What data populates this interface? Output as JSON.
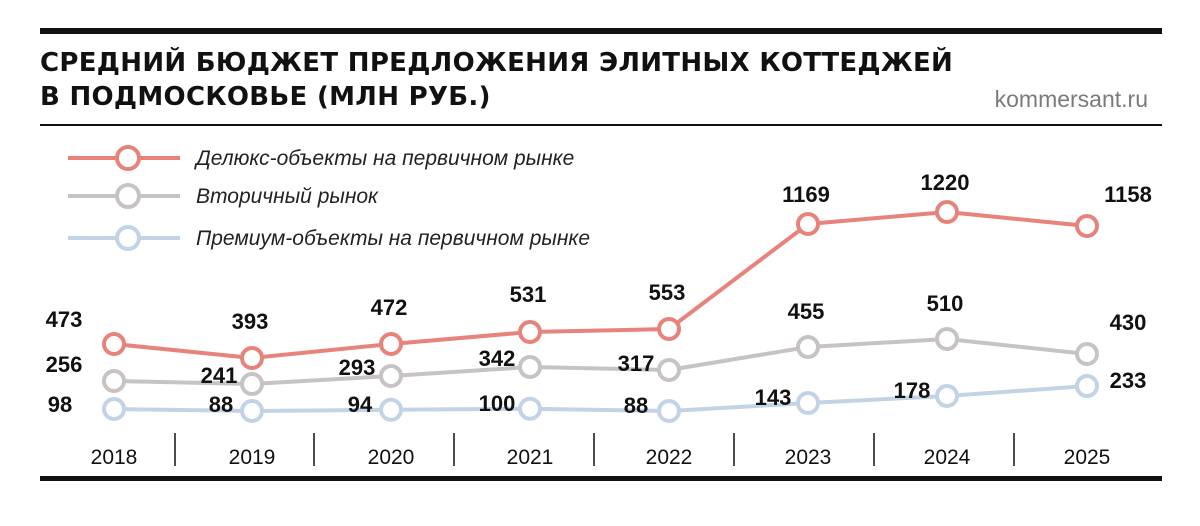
{
  "header": {
    "title_line1": "СРЕДНИЙ БЮДЖЕТ ПРЕДЛОЖЕНИЯ ЭЛИТНЫХ КОТТЕДЖЕЙ",
    "title_line2": "В ПОДМОСКОВЬЕ (МЛН РУБ.)",
    "source": "kommersant.ru"
  },
  "chart_data": {
    "type": "line",
    "title": "СРЕДНИЙ БЮДЖЕТ ПРЕДЛОЖЕНИЯ ЭЛИТНЫХ КОТТЕДЖЕЙ В ПОДМОСКОВЬЕ (МЛН РУБ.)",
    "xlabel": "",
    "ylabel": "",
    "categories": [
      "2018",
      "2019",
      "2020",
      "2021",
      "2022",
      "2023",
      "2024",
      "2025"
    ],
    "legend_position": "top-left",
    "grid": false,
    "series": [
      {
        "name": "Делюкс-объекты на первичном рынке",
        "color": "#e8837c",
        "values": [
          473,
          393,
          472,
          531,
          553,
          1169,
          1220,
          1158
        ]
      },
      {
        "name": "Вторичный рынок",
        "color": "#c7c3c3",
        "values": [
          256,
          241,
          293,
          342,
          317,
          455,
          510,
          430
        ]
      },
      {
        "name": "Премиум-объекты на первичном рынке",
        "color": "#c3d3e6",
        "values": [
          98,
          88,
          94,
          100,
          88,
          143,
          178,
          233
        ]
      }
    ]
  }
}
